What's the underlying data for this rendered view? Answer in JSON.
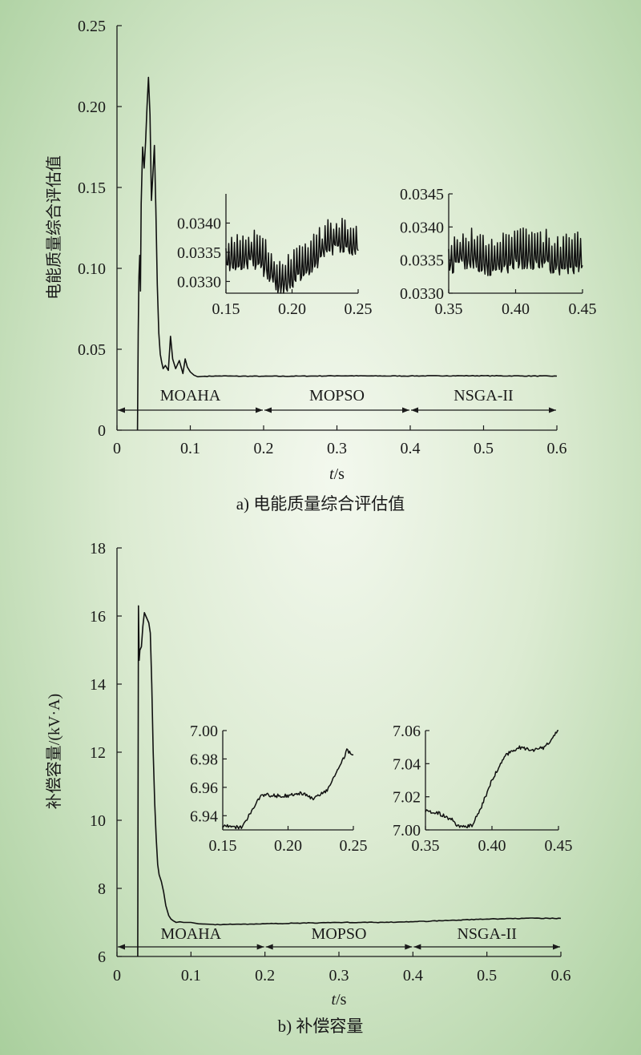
{
  "chart_data": [
    {
      "type": "line",
      "caption": "a) 电能质量综合评估值",
      "ylabel": "电能质量综合评估值",
      "xlabel_italic": "t",
      "xlabel_unit": "/s",
      "xlim": [
        0,
        0.6
      ],
      "ylim": [
        0,
        0.25
      ],
      "x_ticks": [
        "0",
        "0.1",
        "0.2",
        "0.3",
        "0.4",
        "0.5",
        "0.6"
      ],
      "y_ticks": [
        "0",
        "0.05",
        "0.10",
        "0.15",
        "0.20",
        "0.25"
      ],
      "series": [
        {
          "x": [
            0.028,
            0.029,
            0.03,
            0.031,
            0.032,
            0.033,
            0.035,
            0.037,
            0.039,
            0.041,
            0.043,
            0.045,
            0.047,
            0.049,
            0.051,
            0.053,
            0.055,
            0.057,
            0.059,
            0.061,
            0.063,
            0.066,
            0.07,
            0.073,
            0.076,
            0.08,
            0.085,
            0.09,
            0.093,
            0.096,
            0.1,
            0.105,
            0.11,
            0.12,
            0.14,
            0.16,
            0.2,
            0.25,
            0.3,
            0.35,
            0.4,
            0.45,
            0.5,
            0.55,
            0.6
          ],
          "y": [
            0.0,
            0.06,
            0.095,
            0.108,
            0.086,
            0.14,
            0.175,
            0.162,
            0.178,
            0.2,
            0.218,
            0.195,
            0.142,
            0.158,
            0.176,
            0.137,
            0.09,
            0.06,
            0.047,
            0.042,
            0.038,
            0.04,
            0.037,
            0.058,
            0.044,
            0.038,
            0.043,
            0.035,
            0.044,
            0.039,
            0.036,
            0.034,
            0.033,
            0.0333,
            0.0335,
            0.0334,
            0.0333,
            0.0334,
            0.0336,
            0.0335,
            0.0335,
            0.0336,
            0.0336,
            0.0335,
            0.0334
          ]
        }
      ],
      "bands": [
        {
          "label": "MOAHA",
          "x": [
            0,
            0.2
          ]
        },
        {
          "label": "MOPSO",
          "x": [
            0.2,
            0.4
          ]
        },
        {
          "label": "NSGA-II",
          "x": [
            0.4,
            0.6
          ]
        }
      ],
      "insets": [
        {
          "xlim": [
            0.15,
            0.25
          ],
          "ylim": [
            0.0328,
            0.0345
          ],
          "x_ticks": [
            "0.15",
            "0.20",
            "0.25"
          ],
          "y_ticks": [
            "0.0330",
            "0.0335",
            "0.0340"
          ],
          "x": [
            0.15,
            0.16,
            0.17,
            0.18,
            0.19,
            0.2,
            0.21,
            0.22,
            0.23,
            0.24,
            0.25
          ],
          "y": [
            0.0334,
            0.0334,
            0.0335,
            0.0333,
            0.033,
            0.0331,
            0.0333,
            0.0335,
            0.0337,
            0.0337,
            0.0337
          ],
          "noise": 0.00028,
          "period": 0.0025
        },
        {
          "xlim": [
            0.35,
            0.45
          ],
          "ylim": [
            0.033,
            0.0345
          ],
          "x_ticks": [
            "0.35",
            "0.40",
            "0.45"
          ],
          "y_ticks": [
            "0.0330",
            "0.0335",
            "0.0340",
            "0.0345"
          ],
          "x": [
            0.35,
            0.36,
            0.37,
            0.38,
            0.39,
            0.4,
            0.41,
            0.42,
            0.43,
            0.44,
            0.45
          ],
          "y": [
            0.0335,
            0.0336,
            0.0336,
            0.0335,
            0.0335,
            0.0336,
            0.0336,
            0.0336,
            0.0335,
            0.0335,
            0.0336
          ],
          "noise": 0.00028,
          "period": 0.0025
        }
      ]
    },
    {
      "type": "line",
      "caption": "b) 补偿容量",
      "ylabel": "补偿容量/(kV·A)",
      "xlabel_italic": "t",
      "xlabel_unit": "/s",
      "xlim": [
        0,
        0.6
      ],
      "ylim": [
        6,
        18
      ],
      "x_ticks": [
        "0",
        "0.1",
        "0.2",
        "0.3",
        "0.4",
        "0.5",
        "0.6"
      ],
      "y_ticks": [
        "6",
        "8",
        "10",
        "12",
        "14",
        "16",
        "18"
      ],
      "series": [
        {
          "x": [
            0.028,
            0.029,
            0.03,
            0.031,
            0.033,
            0.035,
            0.037,
            0.039,
            0.041,
            0.043,
            0.045,
            0.047,
            0.049,
            0.051,
            0.053,
            0.055,
            0.057,
            0.06,
            0.063,
            0.066,
            0.07,
            0.073,
            0.076,
            0.08,
            0.085,
            0.09,
            0.1,
            0.11,
            0.13,
            0.15,
            0.2,
            0.25,
            0.3,
            0.35,
            0.4,
            0.45,
            0.5,
            0.55,
            0.6
          ],
          "y": [
            6.0,
            16.3,
            14.7,
            15.0,
            15.1,
            15.7,
            16.1,
            16.0,
            15.9,
            15.8,
            15.5,
            14.0,
            12.0,
            10.5,
            9.5,
            8.7,
            8.4,
            8.2,
            7.9,
            7.5,
            7.2,
            7.1,
            7.05,
            7.0,
            7.02,
            7.0,
            7.0,
            6.96,
            6.94,
            6.94,
            6.96,
            6.98,
            7.0,
            7.0,
            7.02,
            7.06,
            7.1,
            7.12,
            7.12
          ]
        }
      ],
      "bands": [
        {
          "label": "MOAHA",
          "x": [
            0,
            0.2
          ]
        },
        {
          "label": "MOPSO",
          "x": [
            0.2,
            0.4
          ]
        },
        {
          "label": "NSGA-II",
          "x": [
            0.4,
            0.6
          ]
        }
      ],
      "insets": [
        {
          "xlim": [
            0.15,
            0.25
          ],
          "ylim": [
            6.93,
            7.0
          ],
          "x_ticks": [
            "0.15",
            "0.20",
            "0.25"
          ],
          "y_ticks": [
            "6.94",
            "6.96",
            "6.98",
            "7.00"
          ],
          "x": [
            0.15,
            0.16,
            0.165,
            0.17,
            0.175,
            0.18,
            0.19,
            0.2,
            0.21,
            0.215,
            0.22,
            0.225,
            0.23,
            0.235,
            0.24,
            0.245,
            0.25
          ],
          "y": [
            6.933,
            6.932,
            6.932,
            6.94,
            6.948,
            6.955,
            6.954,
            6.954,
            6.956,
            6.954,
            6.952,
            6.955,
            6.958,
            6.968,
            6.975,
            6.986,
            6.982
          ],
          "noise": 0.0025,
          "period": 0.0015
        },
        {
          "xlim": [
            0.35,
            0.45
          ],
          "ylim": [
            7.0,
            7.06
          ],
          "x_ticks": [
            "0.35",
            "0.40",
            "0.45"
          ],
          "y_ticks": [
            "7.00",
            "7.02",
            "7.04",
            "7.06"
          ],
          "x": [
            0.35,
            0.36,
            0.37,
            0.375,
            0.38,
            0.385,
            0.39,
            0.4,
            0.41,
            0.42,
            0.43,
            0.44,
            0.45
          ],
          "y": [
            7.012,
            7.01,
            7.006,
            7.002,
            7.002,
            7.003,
            7.01,
            7.03,
            7.045,
            7.05,
            7.048,
            7.05,
            7.06
          ],
          "noise": 0.0022,
          "period": 0.0015
        }
      ]
    }
  ]
}
